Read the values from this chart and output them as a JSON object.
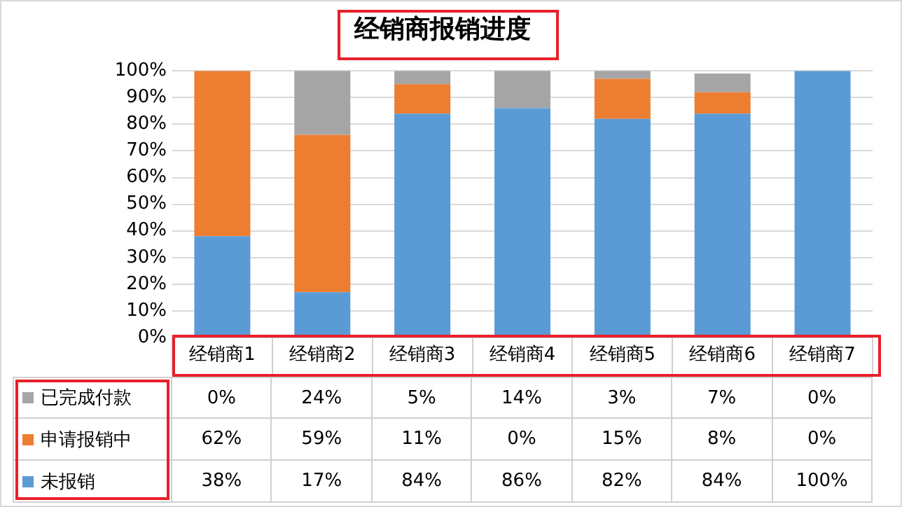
{
  "chart_data": {
    "type": "bar",
    "title": "经销商报销进度",
    "stacked": true,
    "categories": [
      "经销商1",
      "经销商2",
      "经销商3",
      "经销商4",
      "经销商5",
      "经销商6",
      "经销商7"
    ],
    "series": [
      {
        "name": "未报销",
        "color": "#5b9bd5",
        "values": [
          38,
          17,
          84,
          86,
          82,
          84,
          100
        ],
        "value_labels": [
          "38%",
          "17%",
          "84%",
          "86%",
          "82%",
          "84%",
          "100%"
        ]
      },
      {
        "name": "申请报销中",
        "color": "#ed7d31",
        "values": [
          62,
          59,
          11,
          0,
          15,
          8,
          0
        ],
        "value_labels": [
          "62%",
          "59%",
          "11%",
          "0%",
          "15%",
          "8%",
          "0%"
        ]
      },
      {
        "name": "已完成付款",
        "color": "#a5a5a5",
        "values": [
          0,
          24,
          5,
          14,
          3,
          7,
          0
        ],
        "value_labels": [
          "0%",
          "24%",
          "5%",
          "14%",
          "3%",
          "7%",
          "0%"
        ]
      }
    ],
    "ylim": [
      0,
      100
    ],
    "yticks": [
      {
        "value": 0,
        "label": "0%"
      },
      {
        "value": 10,
        "label": "10%"
      },
      {
        "value": 20,
        "label": "20%"
      },
      {
        "value": 30,
        "label": "30%"
      },
      {
        "value": 40,
        "label": "40%"
      },
      {
        "value": 50,
        "label": "50%"
      },
      {
        "value": 60,
        "label": "60%"
      },
      {
        "value": 70,
        "label": "70%"
      },
      {
        "value": 80,
        "label": "80%"
      },
      {
        "value": 90,
        "label": "90%"
      },
      {
        "value": 100,
        "label": "100%"
      }
    ],
    "grid": "y",
    "legend": "bottom left"
  }
}
